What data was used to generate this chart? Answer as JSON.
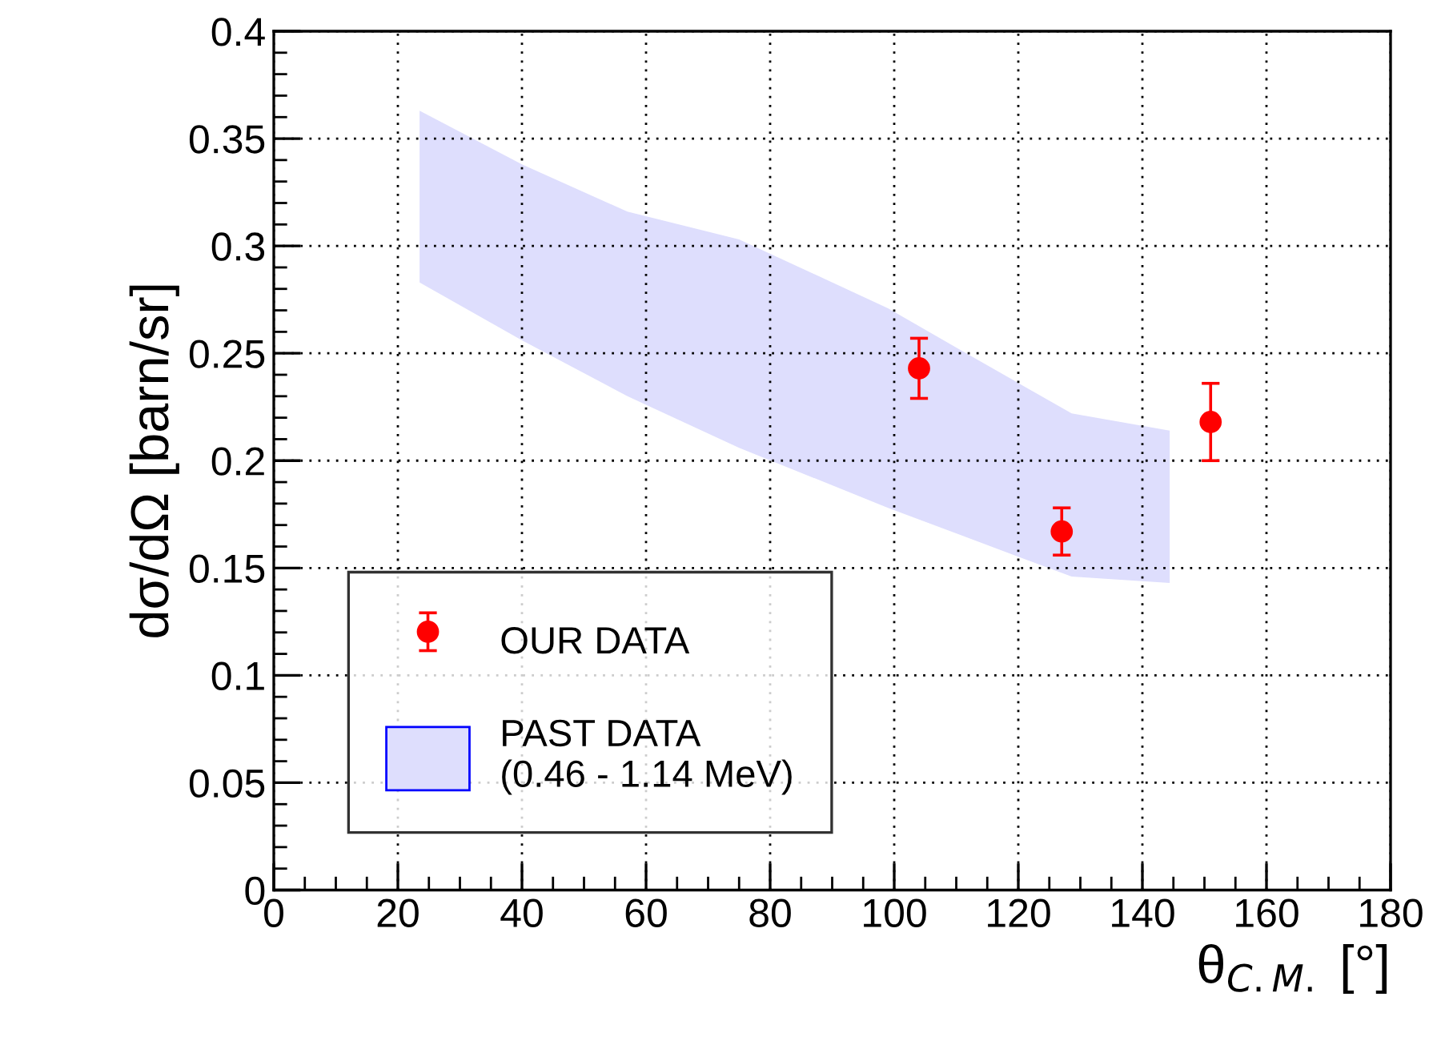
{
  "chart_data": {
    "type": "scatter",
    "xlabel": "θ$_{C.M.}$ [°]",
    "ylabel": "dσ/dΩ [barn/sr]",
    "xlim": [
      0,
      180
    ],
    "xticks": [
      0,
      20,
      40,
      60,
      80,
      100,
      120,
      140,
      160,
      180
    ],
    "ylim": [
      0,
      0.4
    ],
    "yticks": [
      0,
      0.05,
      0.1,
      0.15,
      0.2,
      0.25,
      0.3,
      0.35,
      0.4
    ],
    "grid": true,
    "legend": "bottom left",
    "series": [
      {
        "type": "scatter",
        "name": "OUR DATA",
        "color": "#ff0000",
        "marker": "circle",
        "x": [
          104,
          127,
          151
        ],
        "values": [
          0.243,
          0.167,
          0.218
        ],
        "errors": [
          0.014,
          0.011,
          0.018
        ]
      },
      {
        "type": "area",
        "name": "PAST DATA\n(0.46 - 1.14 MeV)",
        "color": "#dedefd",
        "x": [
          23.5,
          40,
          57,
          75,
          99,
          111,
          128.6,
          144.4
        ],
        "lower": [
          0.283,
          0.256,
          0.23,
          0.206,
          0.178,
          0.165,
          0.146,
          0.143
        ],
        "upper": [
          0.363,
          0.338,
          0.316,
          0.303,
          0.271,
          0.251,
          0.222,
          0.214
        ],
        "values": [
          null,
          null,
          null,
          null,
          null,
          null,
          null,
          null
        ]
      }
    ]
  }
}
